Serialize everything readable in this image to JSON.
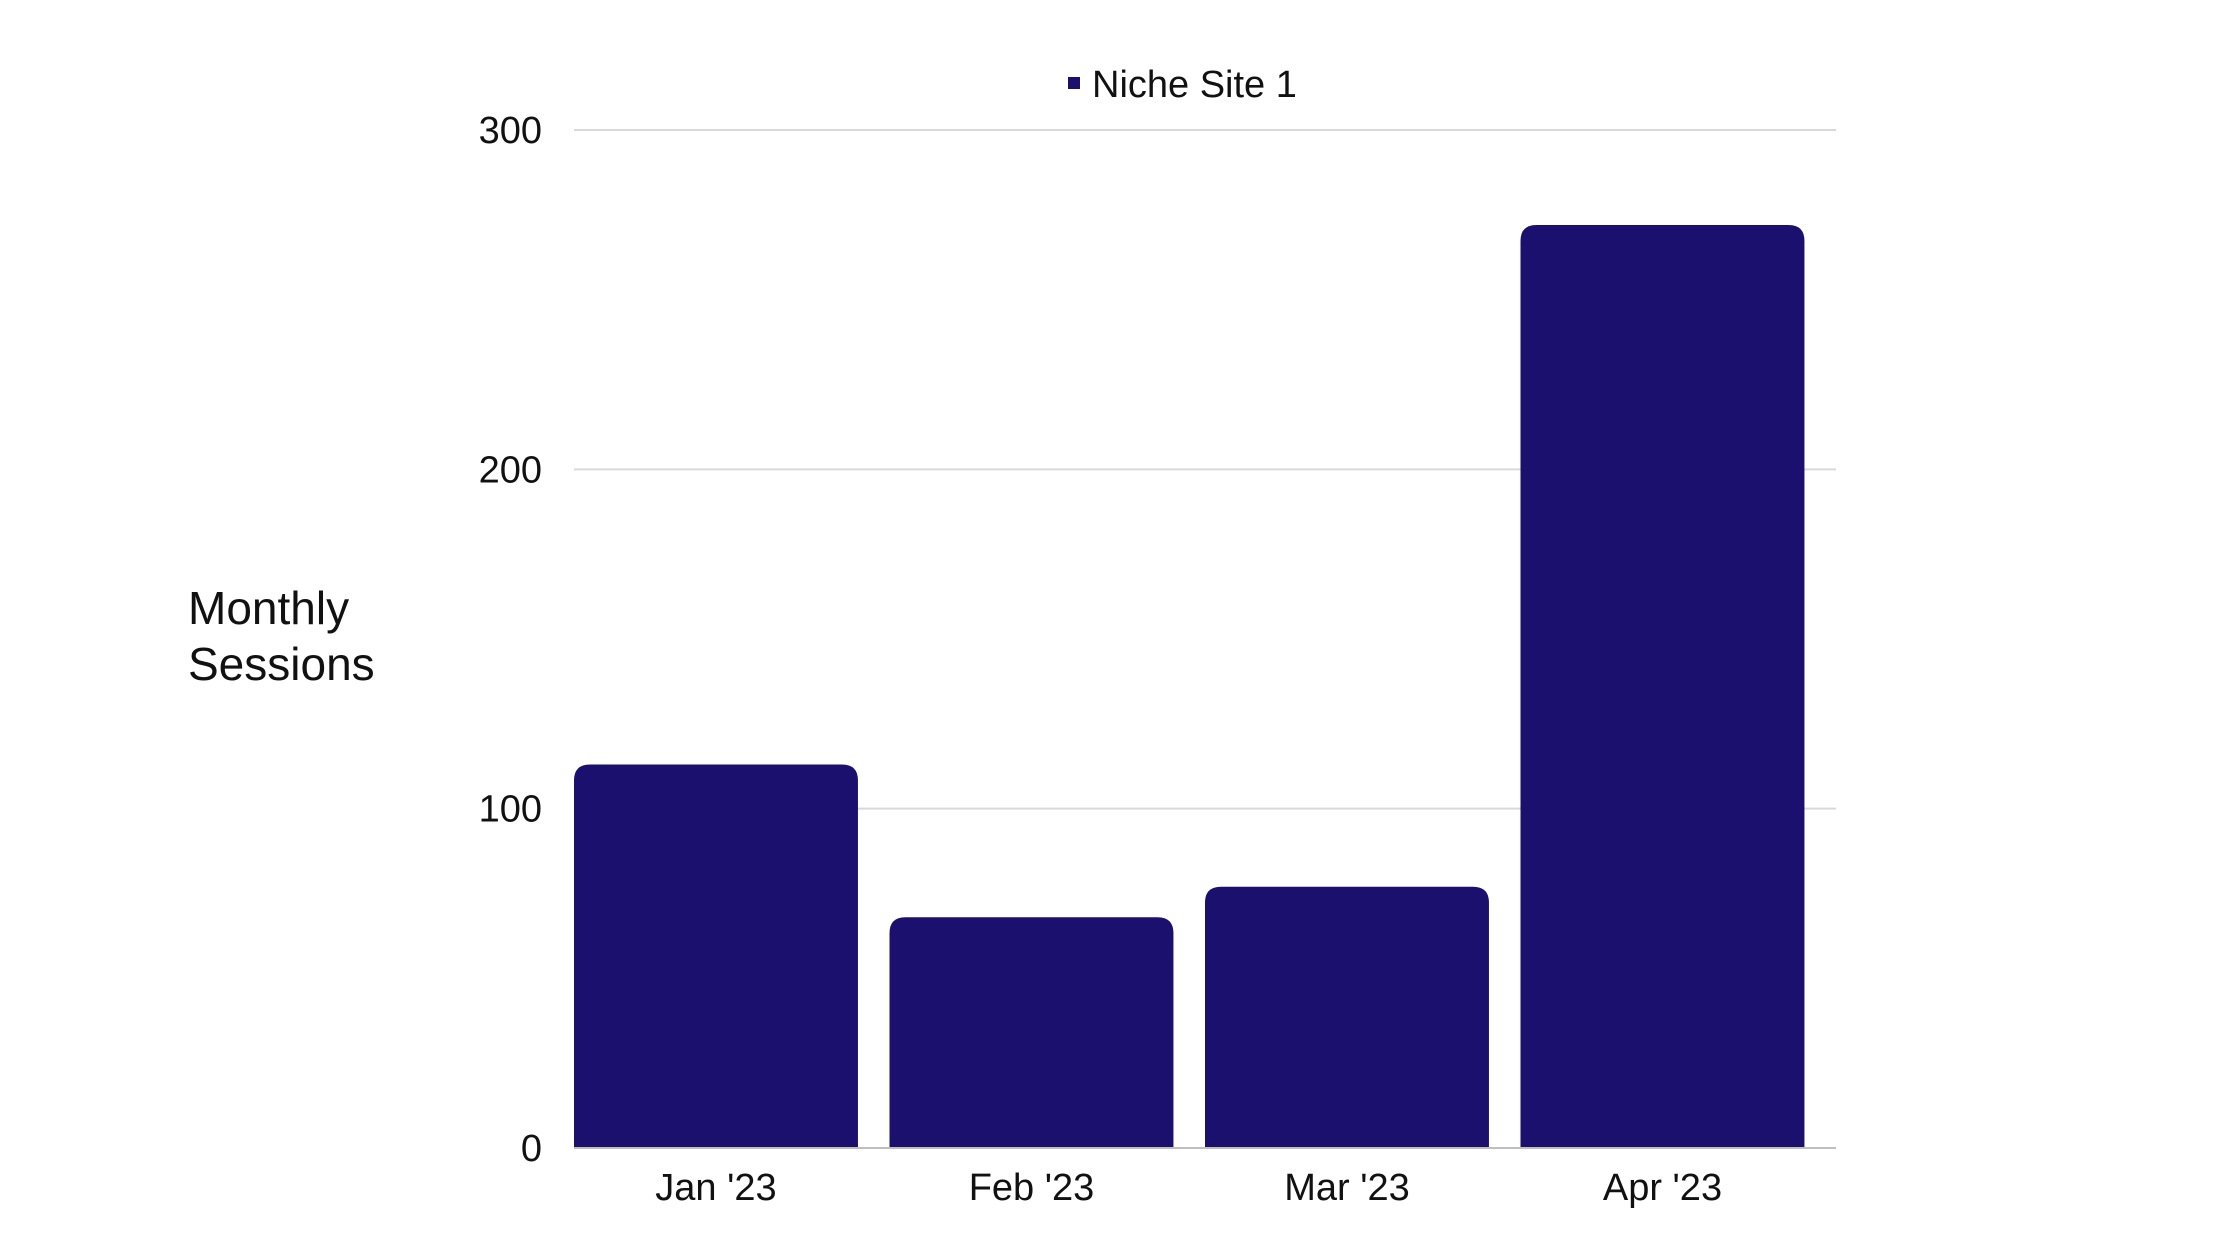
{
  "chart_data": {
    "type": "bar",
    "categories": [
      "Jan '23",
      "Feb '23",
      "Mar '23",
      "Apr '23"
    ],
    "series": [
      {
        "name": "Niche Site 1",
        "color": "#1b106e",
        "values": [
          113,
          68,
          77,
          272
        ]
      }
    ],
    "ylabel_lines": [
      "Monthly",
      "Sessions"
    ],
    "xlabel": "",
    "ylim": [
      0,
      300
    ],
    "yticks": [
      0,
      100,
      200,
      300
    ],
    "grid": true,
    "legend": "top-center"
  }
}
